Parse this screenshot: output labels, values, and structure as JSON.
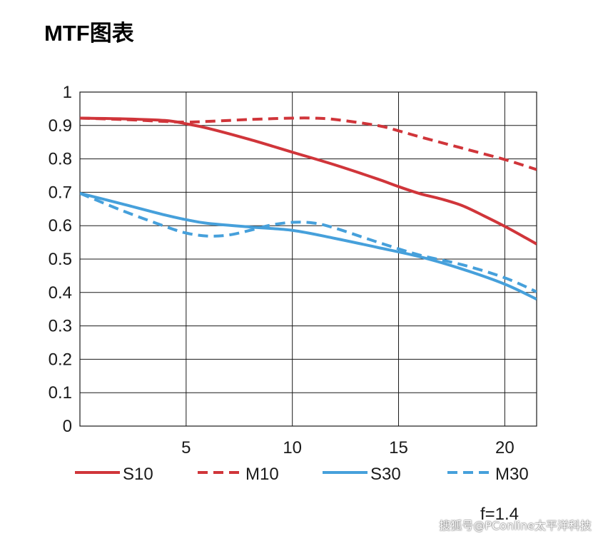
{
  "title": "MTF图表",
  "watermark": "搜狐号@PConline太平洋科技",
  "chart_data": {
    "type": "line",
    "xlim": [
      0,
      21.5
    ],
    "ylim": [
      0,
      1
    ],
    "xticks": [
      5,
      10,
      15,
      20
    ],
    "yticks": [
      0,
      0.1,
      0.2,
      0.3,
      0.4,
      0.5,
      0.6,
      0.7,
      0.8,
      0.9,
      1
    ],
    "xtick_labels": [
      "5",
      "10",
      "15",
      "20"
    ],
    "ytick_labels": [
      "0",
      "0.1",
      "0.2",
      "0.3",
      "0.4",
      "0.5",
      "0.6",
      "0.7",
      "0.8",
      "0.9",
      "1"
    ],
    "grid": true,
    "legend_position": "bottom",
    "note": "f=1.4",
    "series": [
      {
        "name": "S10",
        "color": "#d0353a",
        "dash": "solid",
        "x": [
          0,
          2,
          4,
          5,
          6,
          8,
          10,
          12,
          14,
          15,
          16,
          17,
          18,
          19,
          20,
          21,
          21.5
        ],
        "y": [
          0.922,
          0.92,
          0.915,
          0.905,
          0.892,
          0.858,
          0.82,
          0.782,
          0.74,
          0.717,
          0.696,
          0.68,
          0.66,
          0.63,
          0.598,
          0.563,
          0.545
        ]
      },
      {
        "name": "M10",
        "color": "#d0353a",
        "dash": "dashed",
        "x": [
          0,
          2,
          4,
          5,
          6,
          8,
          10,
          11,
          12,
          14,
          15,
          16,
          18,
          20,
          21.5
        ],
        "y": [
          0.922,
          0.918,
          0.912,
          0.91,
          0.912,
          0.918,
          0.922,
          0.922,
          0.918,
          0.9,
          0.884,
          0.866,
          0.832,
          0.798,
          0.768
        ]
      },
      {
        "name": "S30",
        "color": "#46a0db",
        "dash": "solid",
        "x": [
          0,
          2,
          4,
          5,
          6,
          8,
          10,
          12,
          14,
          16,
          18,
          20,
          21.5
        ],
        "y": [
          0.697,
          0.665,
          0.632,
          0.618,
          0.607,
          0.596,
          0.586,
          0.562,
          0.535,
          0.507,
          0.47,
          0.425,
          0.38
        ]
      },
      {
        "name": "M30",
        "color": "#46a0db",
        "dash": "dashed",
        "x": [
          0,
          2,
          4,
          5,
          6,
          7,
          8,
          9,
          10,
          11,
          12,
          14,
          16,
          18,
          20,
          21.5
        ],
        "y": [
          0.697,
          0.645,
          0.598,
          0.578,
          0.569,
          0.572,
          0.586,
          0.602,
          0.61,
          0.608,
          0.593,
          0.551,
          0.512,
          0.483,
          0.444,
          0.402
        ]
      }
    ]
  }
}
